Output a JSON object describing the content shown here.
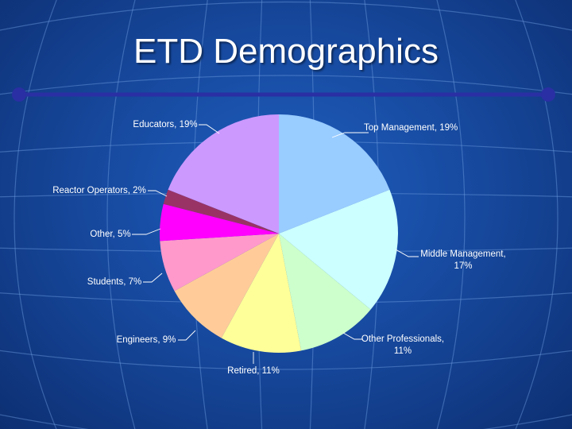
{
  "slide": {
    "title": "ETD Demographics"
  },
  "theme": {
    "title_rule_color": "#2a2fa3",
    "grid_line_color": "#6f9de0"
  },
  "chart_data": {
    "type": "pie",
    "title": "",
    "slices": [
      {
        "label": "Top Management",
        "value": 19,
        "text": [
          "Top Management, 19%"
        ],
        "color": "#99ccff"
      },
      {
        "label": "Middle Management",
        "value": 17,
        "text": [
          "Middle Management,",
          "17%"
        ],
        "color": "#ccffff"
      },
      {
        "label": "Other Professionals",
        "value": 11,
        "text": [
          "Other Professionals,",
          "11%"
        ],
        "color": "#ccffcc"
      },
      {
        "label": "Retired",
        "value": 11,
        "text": [
          "Retired, 11%"
        ],
        "color": "#ffff99"
      },
      {
        "label": "Engineers",
        "value": 9,
        "text": [
          "Engineers, 9%"
        ],
        "color": "#ffcc99"
      },
      {
        "label": "Students",
        "value": 7,
        "text": [
          "Students, 7%"
        ],
        "color": "#ff99cc"
      },
      {
        "label": "Other",
        "value": 5,
        "text": [
          "Other, 5%"
        ],
        "color": "#ff00ff"
      },
      {
        "label": "Reactor Operators",
        "value": 2,
        "text": [
          "Reactor Operators, 2%"
        ],
        "color": "#993366"
      },
      {
        "label": "Educators",
        "value": 19,
        "text": [
          "Educators, 19%"
        ],
        "color": "#cc99ff"
      }
    ]
  }
}
